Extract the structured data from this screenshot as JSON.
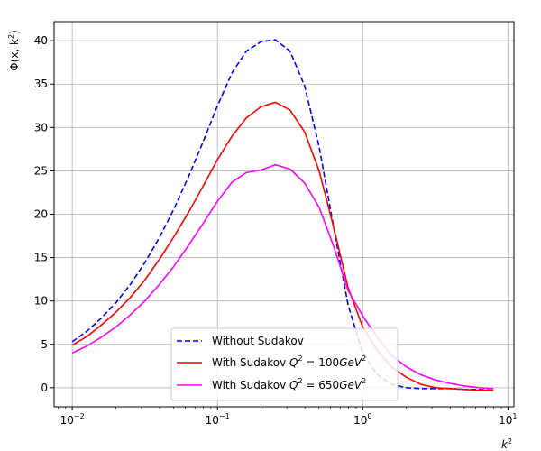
{
  "chart_data": {
    "type": "line",
    "title": "",
    "xlabel": "k",
    "xlabel_sup": "2",
    "ylabel_main": "Φ(x, k",
    "ylabel_sup": "2",
    "ylabel_close": ")",
    "xscale": "log",
    "xlim": [
      0.0075,
      11
    ],
    "ylim": [
      -2.2,
      42.2
    ],
    "grid": true,
    "legend_position": "lower-center",
    "x_ticks": [
      {
        "value": 0.01,
        "base": "10",
        "exp": "−2"
      },
      {
        "value": 0.1,
        "base": "10",
        "exp": "−1"
      },
      {
        "value": 1,
        "base": "10",
        "exp": "0"
      },
      {
        "value": 10,
        "base": "10",
        "exp": "1"
      }
    ],
    "y_ticks": [
      {
        "value": 0,
        "label": "0"
      },
      {
        "value": 5,
        "label": "5"
      },
      {
        "value": 10,
        "label": "10"
      },
      {
        "value": 15,
        "label": "15"
      },
      {
        "value": 20,
        "label": "20"
      },
      {
        "value": 25,
        "label": "25"
      },
      {
        "value": 30,
        "label": "30"
      },
      {
        "value": 35,
        "label": "35"
      },
      {
        "value": 40,
        "label": "40"
      }
    ],
    "x": [
      0.01,
      0.0126,
      0.0158,
      0.02,
      0.0251,
      0.0316,
      0.0398,
      0.0501,
      0.0631,
      0.0794,
      0.1,
      0.126,
      0.158,
      0.2,
      0.251,
      0.316,
      0.398,
      0.501,
      0.631,
      0.794,
      1.0,
      1.26,
      1.58,
      2.0,
      2.51,
      3.16,
      3.98,
      5.01,
      6.31,
      7.94
    ],
    "series": [
      {
        "name_parts": [
          "Without Sudakov"
        ],
        "color": "#0000ff",
        "dash": "dashed",
        "values": [
          5.3,
          6.5,
          8.0,
          9.8,
          11.9,
          14.4,
          17.3,
          20.6,
          24.3,
          28.3,
          32.5,
          36.3,
          38.8,
          39.9,
          40.1,
          38.8,
          34.8,
          27.8,
          18.5,
          9.5,
          4.0,
          1.5,
          0.4,
          0.0,
          -0.1,
          -0.1,
          -0.1,
          -0.2,
          -0.2,
          -0.3
        ]
      },
      {
        "name_parts": [
          "With Sudakov ",
          "Q",
          "2",
          " = 100",
          "GeV",
          "2"
        ],
        "color": "#ff0000",
        "dash": "solid",
        "values": [
          4.9,
          5.9,
          7.2,
          8.7,
          10.4,
          12.4,
          14.8,
          17.4,
          20.2,
          23.2,
          26.3,
          29.0,
          31.1,
          32.4,
          32.9,
          32.0,
          29.5,
          25.0,
          18.5,
          11.5,
          7.0,
          4.3,
          2.4,
          1.2,
          0.4,
          0.0,
          -0.1,
          -0.2,
          -0.3,
          -0.3
        ]
      },
      {
        "name_parts": [
          "With Sudakov ",
          "Q",
          "2",
          " = 650",
          "GeV",
          "2"
        ],
        "color": "#ff00ff",
        "dash": "solid",
        "values": [
          4.0,
          4.8,
          5.8,
          7.0,
          8.4,
          10.0,
          11.9,
          14.0,
          16.4,
          18.9,
          21.5,
          23.7,
          24.8,
          25.1,
          25.7,
          25.2,
          23.6,
          20.8,
          16.3,
          11.2,
          8.3,
          5.8,
          3.7,
          2.4,
          1.5,
          0.9,
          0.5,
          0.2,
          0.0,
          -0.1
        ]
      }
    ]
  }
}
